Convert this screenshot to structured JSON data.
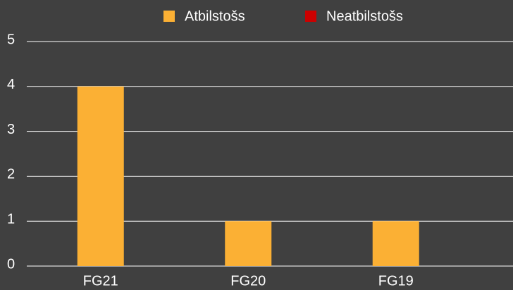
{
  "chart_data": {
    "type": "bar",
    "categories": [
      "FG21",
      "FG20",
      "FG19"
    ],
    "series": [
      {
        "name": "Atbilstošs",
        "color": "#fbb034",
        "values": [
          4,
          1,
          1
        ]
      },
      {
        "name": "Neatbilstošs",
        "color": "#cc0000",
        "values": [
          0,
          0,
          0
        ]
      }
    ],
    "ylim": [
      0,
      5
    ],
    "yticks": [
      0,
      1,
      2,
      3,
      4,
      5
    ],
    "grid": true,
    "legend": "top"
  }
}
